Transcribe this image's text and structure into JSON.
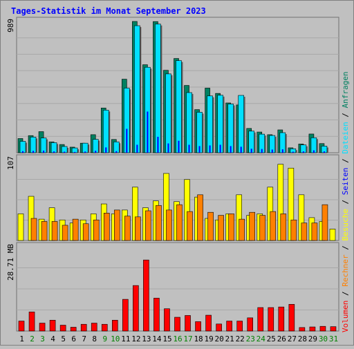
{
  "title": "Tages-Statistik im Monat September 2023",
  "colors": {
    "background": "#c0c0c0",
    "frame": "#808080",
    "title": "#0000ff",
    "anfragen": "#008060",
    "dateien": "#00e0ff",
    "seiten": "#0000ff",
    "besuche": "#ffff00",
    "rechner": "#ff8000",
    "volumen": "#ff0000",
    "weekday_label": "#000000",
    "weekend_label": "#008000"
  },
  "chart_data": [
    {
      "type": "bar",
      "panel": "top",
      "max_label": "989",
      "ymax": 989,
      "categories": [
        "1",
        "2",
        "3",
        "4",
        "5",
        "6",
        "7",
        "8",
        "9",
        "10",
        "11",
        "12",
        "13",
        "14",
        "15",
        "16",
        "17",
        "18",
        "19",
        "20",
        "21",
        "22",
        "23",
        "24",
        "25",
        "26",
        "27",
        "28",
        "29",
        "30",
        "31"
      ],
      "weekend": [
        2,
        3,
        9,
        10,
        16,
        17,
        23,
        24,
        30,
        31
      ],
      "series": [
        {
          "name": "Anfragen",
          "values": [
            107,
            129,
            159,
            82,
            62,
            42,
            72,
            136,
            337,
            100,
            554,
            989,
            663,
            988,
            621,
            710,
            507,
            325,
            487,
            447,
            375,
            360,
            183,
            156,
            136,
            172,
            37,
            66,
            141,
            69,
            0
          ]
        },
        {
          "name": "Dateien",
          "values": [
            86,
            118,
            111,
            76,
            47,
            36,
            72,
            101,
            321,
            82,
            487,
            957,
            644,
            969,
            594,
            694,
            453,
            305,
            428,
            433,
            367,
            432,
            163,
            140,
            130,
            151,
            30,
            59,
            113,
            50,
            0
          ]
        },
        {
          "name": "Seiten",
          "values": [
            12,
            14,
            16,
            10,
            8,
            6,
            9,
            15,
            40,
            12,
            180,
            60,
            310,
            120,
            70,
            90,
            60,
            50,
            55,
            60,
            50,
            45,
            30,
            28,
            24,
            26,
            8,
            10,
            18,
            10,
            0
          ]
        }
      ]
    },
    {
      "type": "bar",
      "panel": "middle",
      "max_label": "107",
      "ymax": 107,
      "series": [
        {
          "name": "Besuche",
          "values": [
            35,
            58,
            28,
            43,
            27,
            23,
            27,
            35,
            48,
            35,
            40,
            70,
            43,
            52,
            88,
            51,
            80,
            57,
            29,
            27,
            35,
            60,
            33,
            35,
            70,
            100,
            95,
            60,
            30,
            25,
            15
          ]
        },
        {
          "name": "Rechner",
          "values": [
            0,
            29,
            25,
            25,
            20,
            28,
            22,
            27,
            36,
            40,
            32,
            31,
            39,
            46,
            40,
            47,
            38,
            60,
            37,
            33,
            35,
            28,
            37,
            33,
            38,
            35,
            27,
            23,
            23,
            47,
            0
          ]
        }
      ]
    },
    {
      "type": "bar",
      "panel": "bottom",
      "max_label": "28.71 MB",
      "ymax": 28.71,
      "series": [
        {
          "name": "Volumen",
          "values": [
            3.4,
            6.5,
            2.7,
            3.7,
            2.0,
            1.3,
            2.3,
            2.7,
            2.3,
            3.7,
            10.8,
            15.5,
            24.2,
            11.2,
            7.6,
            4.7,
            5.3,
            3.2,
            5.4,
            2.4,
            3.4,
            3.4,
            4.5,
            8.0,
            8.0,
            8.2,
            9.1,
            1.2,
            1.4,
            1.6,
            1.5
          ]
        }
      ]
    }
  ],
  "right_legend": [
    {
      "text": "Volumen",
      "color_key": "volumen"
    },
    {
      "text": " / ",
      "color_key": "weekday_label"
    },
    {
      "text": "Rechner",
      "color_key": "rechner"
    },
    {
      "text": " / ",
      "color_key": "weekday_label"
    },
    {
      "text": "Besuche",
      "color_key": "besuche"
    },
    {
      "text": " / ",
      "color_key": "weekday_label"
    },
    {
      "text": "Seiten",
      "color_key": "seiten"
    },
    {
      "text": " / ",
      "color_key": "weekday_label"
    },
    {
      "text": "Dateien",
      "color_key": "dateien"
    },
    {
      "text": " / ",
      "color_key": "weekday_label"
    },
    {
      "text": "Anfragen",
      "color_key": "anfragen"
    }
  ]
}
